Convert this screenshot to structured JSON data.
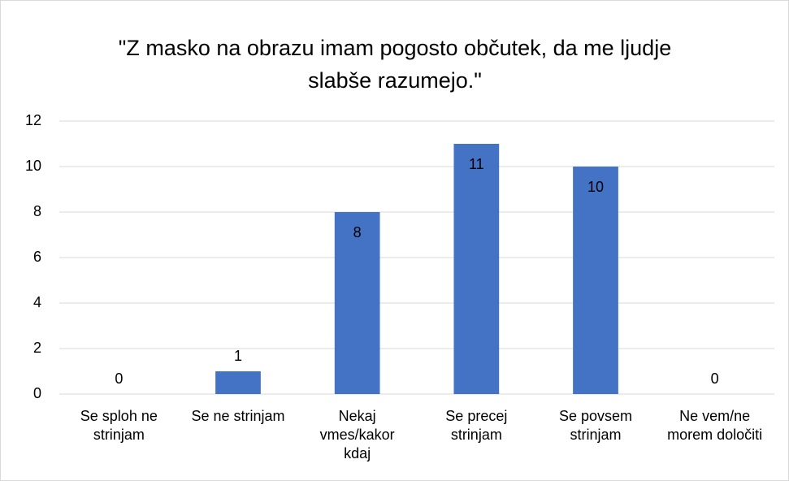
{
  "chart_data": {
    "type": "bar",
    "title": "\"Z masko na obrazu imam pogosto občutek, da me ljudje slabše razumejo.\"",
    "categories": [
      "Se sploh ne strinjam",
      "Se ne strinjam",
      "Nekaj vmes/kakor kdaj",
      "Se precej strinjam",
      "Se povsem strinjam",
      "Ne vem/ne morem določiti"
    ],
    "values": [
      0,
      1,
      8,
      11,
      10,
      0
    ],
    "color": "#4472c4",
    "ylim": [
      0,
      12
    ],
    "yticks": [
      0,
      2,
      4,
      6,
      8,
      10,
      12
    ],
    "grid": true
  }
}
